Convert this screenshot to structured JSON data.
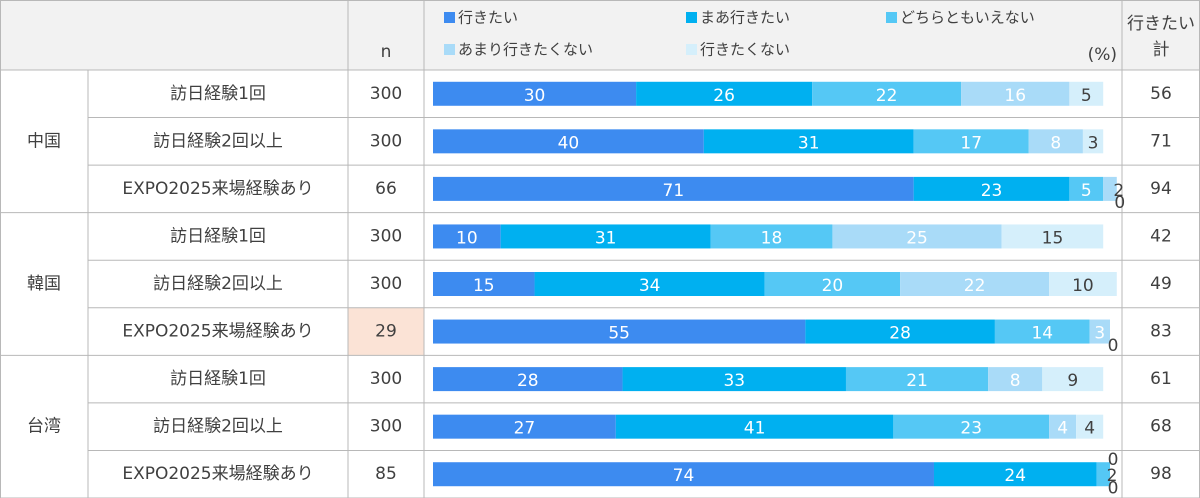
{
  "chart_data": {
    "type": "bar",
    "stacked": true,
    "horizontal": true,
    "unit": "(%)",
    "n_header": "n",
    "total_header": [
      "行きたい",
      "計"
    ],
    "groups": [
      "中国",
      "韓国",
      "台湾"
    ],
    "categories": [
      "訪日経験1回",
      "訪日経験2回以上",
      "EXPO2025来場経験あり",
      "訪日経験1回",
      "訪日経験2回以上",
      "EXPO2025来場経験あり",
      "訪日経験1回",
      "訪日経験2回以上",
      "EXPO2025来場経験あり"
    ],
    "n": [
      300,
      300,
      66,
      300,
      300,
      29,
      300,
      300,
      85
    ],
    "highlight": {
      "n": 5,
      "color": "#fbe3d6"
    },
    "total": [
      56,
      71,
      94,
      42,
      49,
      83,
      61,
      68,
      98
    ],
    "xlim": [
      0,
      100
    ],
    "series": [
      {
        "name": "行きたい",
        "color": "#3d8bf0",
        "label_color": "#ffffff",
        "values": [
          30,
          40,
          71,
          10,
          15,
          55,
          28,
          27,
          74
        ]
      },
      {
        "name": "まあ行きたい",
        "color": "#00b0f0",
        "label_color": "#ffffff",
        "values": [
          26,
          31,
          23,
          31,
          34,
          28,
          33,
          41,
          24
        ]
      },
      {
        "name": "どちらともいえない",
        "color": "#55c8f5",
        "label_color": "#ffffff",
        "values": [
          22,
          17,
          5,
          18,
          20,
          14,
          21,
          23,
          2
        ]
      },
      {
        "name": "あまり行きたくない",
        "color": "#a9dbf8",
        "label_color": "#ffffff",
        "values": [
          16,
          8,
          2,
          25,
          22,
          3,
          8,
          4,
          0
        ]
      },
      {
        "name": "行きたくない",
        "color": "#d5effb",
        "label_color": "#404040",
        "values": [
          5,
          3,
          0,
          15,
          10,
          0,
          9,
          4,
          0
        ]
      }
    ]
  }
}
